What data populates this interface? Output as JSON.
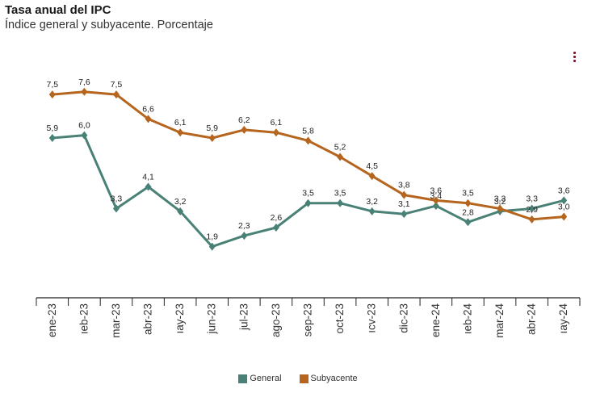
{
  "header": {
    "title": "Tasa anual del IPC",
    "subtitle": "Índice general y subyacente. Porcentaje"
  },
  "menu_icon": "kebab-menu-icon",
  "colors": {
    "general": "#4a8177",
    "subyacente": "#b5651d",
    "axis": "#222222"
  },
  "chart_data": {
    "type": "line",
    "title": "Tasa anual del IPC",
    "subtitle": "Índice general y subyacente. Porcentaje",
    "categories": [
      "ene-23",
      "feb-23",
      "mar-23",
      "abr-23",
      "may-23",
      "jun-23",
      "jul-23",
      "ago-23",
      "sep-23",
      "oct-23",
      "nov-23",
      "dic-23",
      "ene-24",
      "feb-24",
      "mar-24",
      "abr-24",
      "may-24"
    ],
    "category_labels": [
      "ene-23",
      "ıeb-23",
      "mar-23",
      "abr-23",
      "ıay-23",
      "jun-23",
      "jul-23",
      "ago-23",
      "sep-23",
      "oct-23",
      "ıcv-23",
      "dic-23",
      "ene-24",
      "ıeb-24",
      "mar-24",
      "abr-24",
      "ıay-24"
    ],
    "series": [
      {
        "name": "General",
        "values": [
          5.9,
          6.0,
          3.3,
          4.1,
          3.2,
          1.9,
          2.3,
          2.6,
          3.5,
          3.5,
          3.2,
          3.1,
          3.4,
          2.8,
          3.2,
          3.3,
          3.6
        ],
        "labels": [
          "5,9",
          "6,0",
          "3,3",
          "4,1",
          "3,2",
          "1,9",
          "2,3",
          "2,6",
          "3,5",
          "3,5",
          "3,2",
          "3,1",
          "3,4",
          "2,8",
          "3,2",
          "3,3",
          "3,6"
        ]
      },
      {
        "name": "Subyacente",
        "values": [
          7.5,
          7.6,
          7.5,
          6.6,
          6.1,
          5.9,
          6.2,
          6.1,
          5.8,
          5.2,
          4.5,
          3.8,
          3.6,
          3.5,
          3.3,
          2.9,
          3.0
        ],
        "labels": [
          "7,5",
          "7,6",
          "7,5",
          "6,6",
          "6,1",
          "5,9",
          "6,2",
          "6,1",
          "5,8",
          "5,2",
          "4,5",
          "3,8",
          "3,6",
          "3,5",
          "3,3",
          "2,9",
          "3,0"
        ]
      }
    ],
    "grid": false,
    "legend_position": "bottom-center"
  }
}
